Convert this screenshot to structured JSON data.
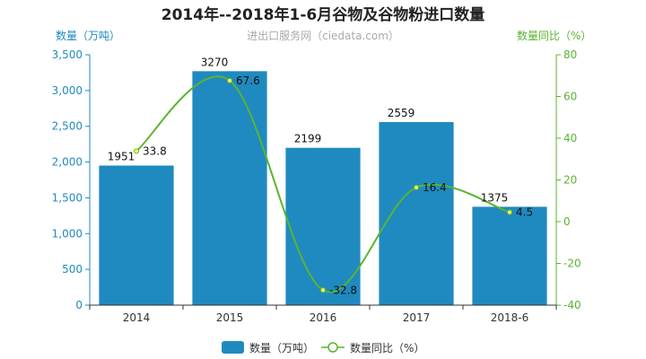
{
  "colors": {
    "bar": "#1f8ac0",
    "line": "#5ab431",
    "axis_left": "#1f8ac0",
    "axis_right": "#5ab431"
  },
  "chart_data": {
    "type": "bar",
    "title": "2014年--2018年1-6月谷物及谷物粉进口数量",
    "watermark": "进出口服务网（ciedata.com）",
    "categories": [
      "2014",
      "2015",
      "2016",
      "2017",
      "2018-6"
    ],
    "series": [
      {
        "name": "数量（万吨）",
        "type": "bar",
        "axis": "left",
        "values": [
          1951,
          3270,
          2199,
          2559,
          1375
        ]
      },
      {
        "name": "数量同比（%）",
        "type": "line",
        "axis": "right",
        "values": [
          33.8,
          67.6,
          -32.8,
          16.4,
          4.5
        ]
      }
    ],
    "ylabel_left": "数量（万吨）",
    "ylabel_right": "数量同比（%）",
    "ylim_left": [
      0,
      3500
    ],
    "ylim_right": [
      -40,
      80
    ],
    "yticks_left": [
      "0",
      "500",
      "1,000",
      "1,500",
      "2,000",
      "2,500",
      "3,000",
      "3,500"
    ],
    "yticks_right": [
      "-40",
      "-20",
      "0",
      "20",
      "40",
      "60",
      "80"
    ],
    "legend": [
      "数量（万吨）",
      "数量同比（%）"
    ],
    "legend_position": "bottom"
  }
}
